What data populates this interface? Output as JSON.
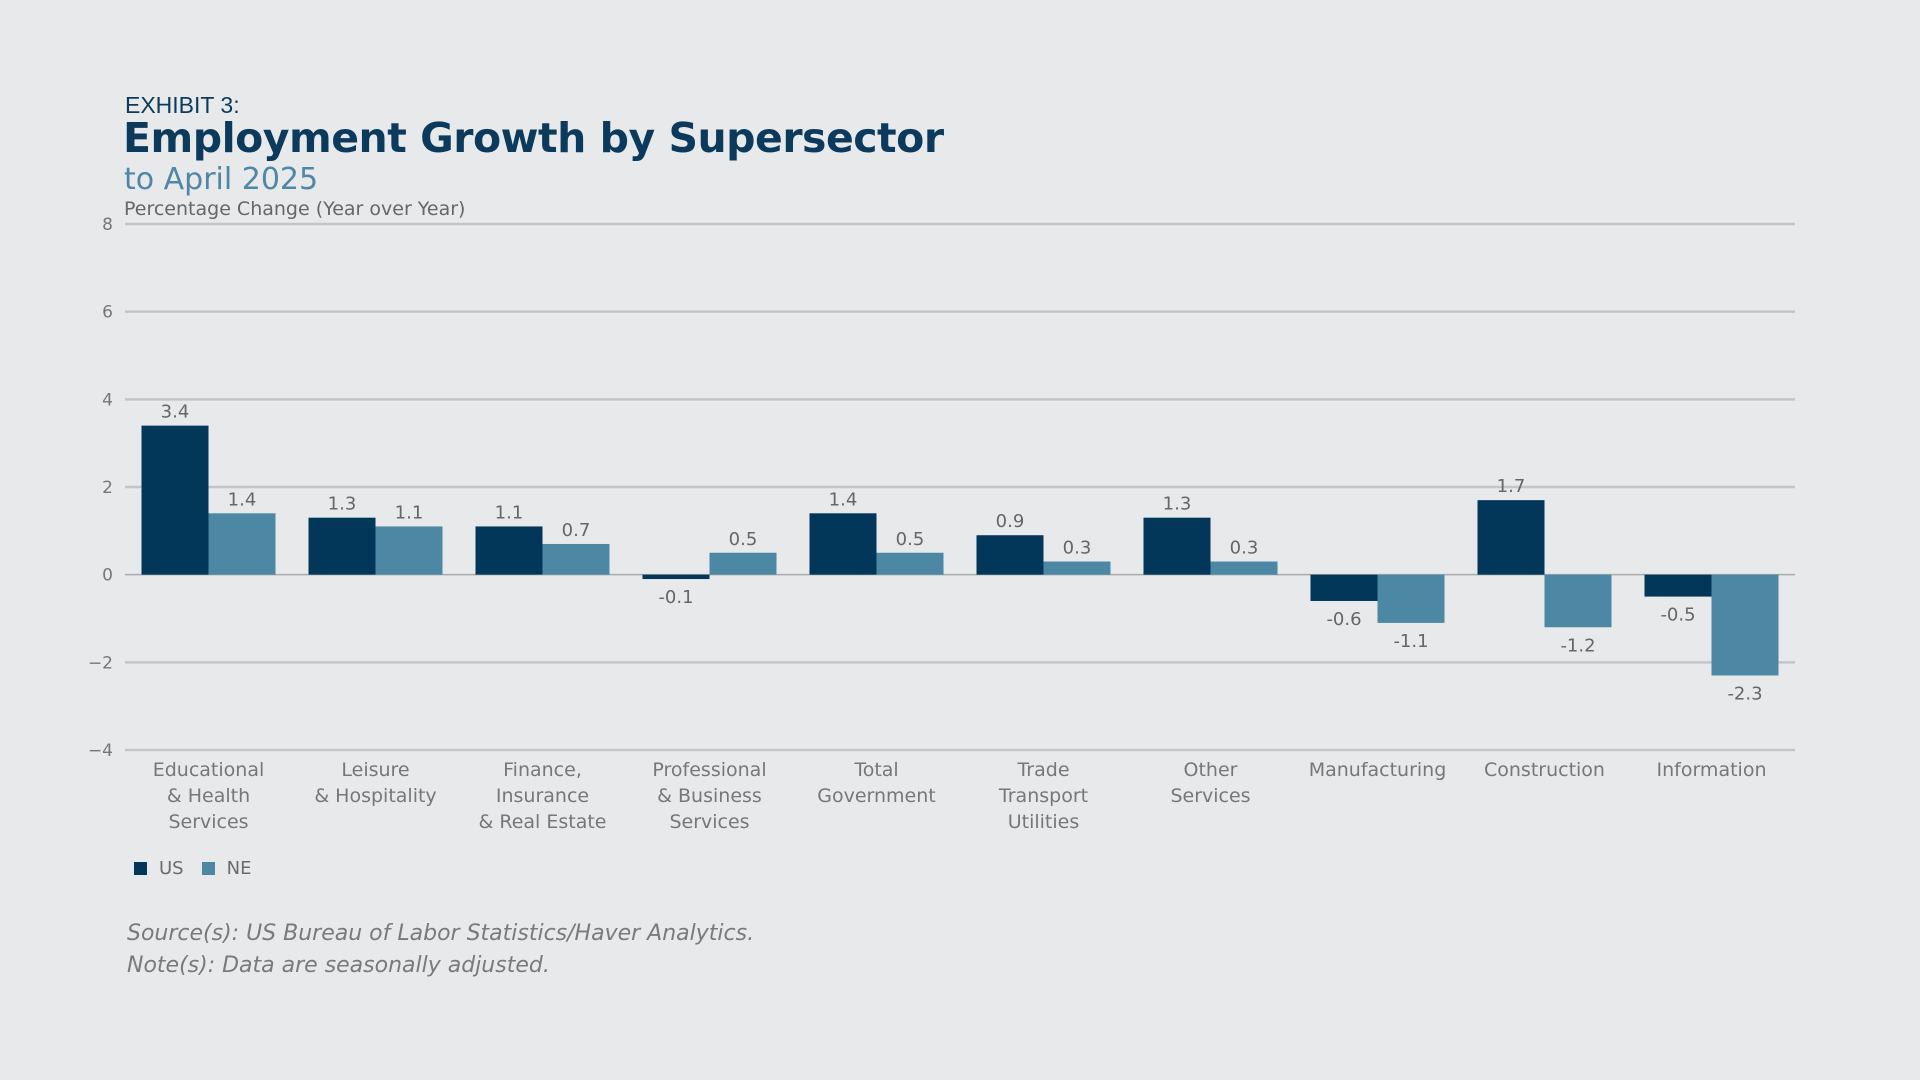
{
  "header": {
    "eyebrow": "EXHIBIT 3:",
    "title": "Employment Growth by Supersector",
    "subtitle": "to April 2025",
    "ylabel": "Percentage Change (Year over Year)"
  },
  "colors": {
    "us": "#03375a",
    "ne": "#4c87a4",
    "grid": "#c4c5c7",
    "axis_text": "#777777",
    "background": "#e8e9eb"
  },
  "chart_data": {
    "type": "bar",
    "categories": [
      [
        "Educational",
        "& Health",
        "Services"
      ],
      [
        "Leisure",
        "& Hospitality"
      ],
      [
        "Finance,",
        "Insurance",
        "& Real Estate"
      ],
      [
        "Professional",
        "& Business",
        "Services"
      ],
      [
        "Total",
        "Government"
      ],
      [
        "Trade",
        "Transport",
        "Utilities"
      ],
      [
        "Other",
        "Services"
      ],
      [
        "Manufacturing"
      ],
      [
        "Construction"
      ],
      [
        "Information"
      ]
    ],
    "series": [
      {
        "name": "US",
        "values": [
          3.4,
          1.3,
          1.1,
          -0.1,
          1.4,
          0.9,
          1.3,
          -0.6,
          1.7,
          -0.5
        ]
      },
      {
        "name": "NE",
        "values": [
          1.4,
          1.1,
          0.7,
          0.5,
          0.5,
          0.3,
          0.3,
          -1.1,
          -1.2,
          -2.3
        ]
      }
    ],
    "data_labels": [
      [
        "3.4",
        "1.3",
        "1.1",
        "-0.1",
        "1.4",
        "0.9",
        "1.3",
        "-0.6",
        "1.7",
        "-0.5"
      ],
      [
        "1.4",
        "1.1",
        "0.7",
        "0.5",
        "0.5",
        "0.3",
        "0.3",
        "-1.1",
        "-1.2",
        "-2.3"
      ]
    ],
    "ylim": [
      -4,
      8
    ],
    "yticks": [
      8,
      6,
      4,
      2,
      0,
      -2,
      -4
    ],
    "ytick_labels": [
      "8",
      "6",
      "4",
      "2",
      "0",
      "−2",
      "−4"
    ],
    "grid": true,
    "legend_position": "bottom-left"
  },
  "footer": {
    "source": "Source(s): US Bureau of Labor Statistics/Haver Analytics.",
    "note": "Note(s): Data are seasonally adjusted."
  }
}
